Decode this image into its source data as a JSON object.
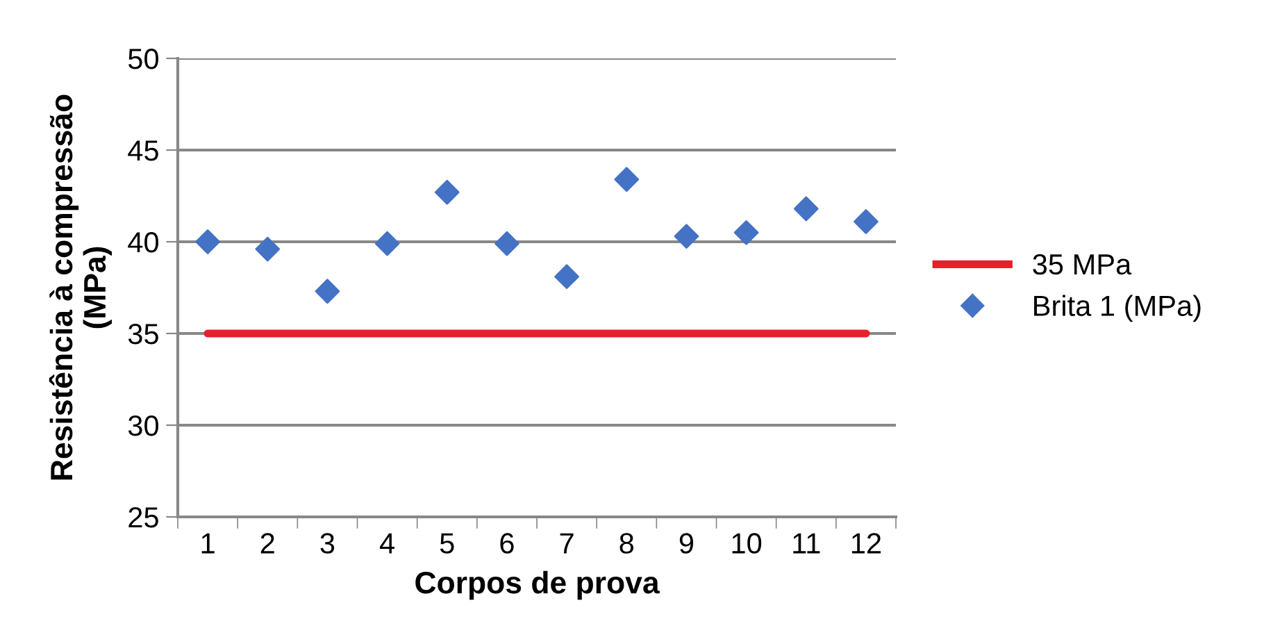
{
  "chart_data": {
    "type": "scatter",
    "xlabel": "Corpos de prova",
    "ylabel": "Resistência à compressão\n(MPa)",
    "categories": [
      "1",
      "2",
      "3",
      "4",
      "5",
      "6",
      "7",
      "8",
      "9",
      "10",
      "11",
      "12"
    ],
    "series": [
      {
        "name": "35 MPa",
        "type": "line",
        "color": "#e8202a",
        "values": [
          35,
          35,
          35,
          35,
          35,
          35,
          35,
          35,
          35,
          35,
          35,
          35
        ]
      },
      {
        "name": "Brita 1 (MPa)",
        "color": "#4472c4",
        "marker": "diamond",
        "values": [
          40.0,
          39.6,
          37.3,
          39.9,
          42.7,
          39.9,
          38.1,
          43.4,
          40.3,
          40.5,
          41.8,
          41.1
        ]
      }
    ],
    "ylim": [
      25,
      50
    ],
    "yticks": [
      25,
      30,
      35,
      40,
      45,
      50
    ],
    "grid": "y",
    "legend": "right"
  }
}
